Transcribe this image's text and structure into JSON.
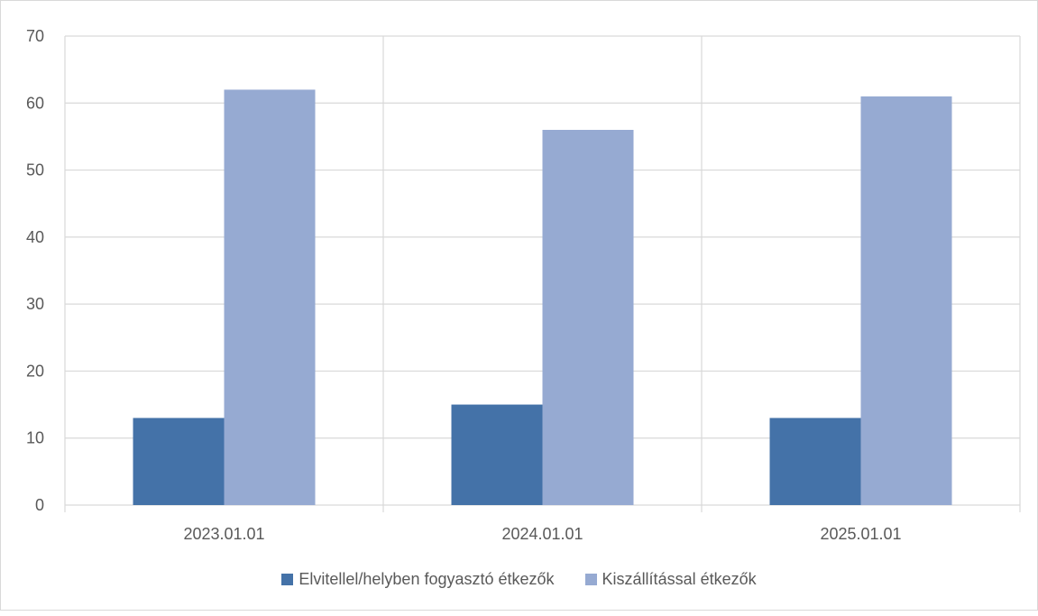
{
  "chart_data": {
    "type": "bar",
    "categories": [
      "2023.01.01",
      "2024.01.01",
      "2025.01.01"
    ],
    "series": [
      {
        "name": "Elvitellel/helyben fogyasztó étkezők",
        "values": [
          13,
          15,
          13
        ],
        "color": "#4472A8"
      },
      {
        "name": "Kiszállítással étkezők",
        "values": [
          62,
          56,
          61
        ],
        "color": "#96AAD2"
      }
    ],
    "ylim": [
      0,
      70
    ],
    "yticks": [
      0,
      10,
      20,
      30,
      40,
      50,
      60,
      70
    ],
    "grid": true,
    "legend_position": "bottom",
    "title": "",
    "xlabel": "",
    "ylabel": ""
  }
}
